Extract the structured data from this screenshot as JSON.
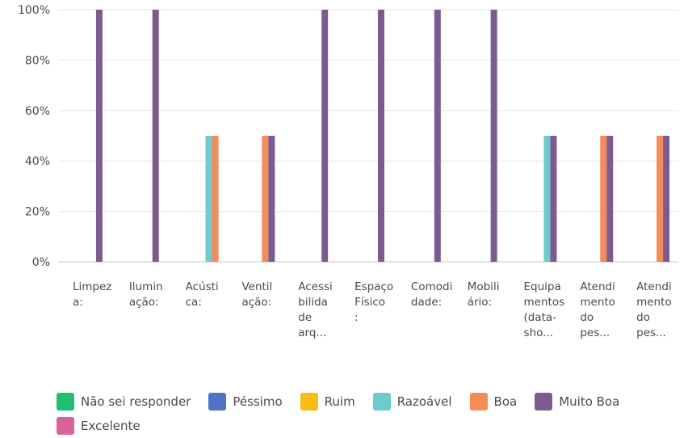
{
  "chart_data": {
    "type": "bar",
    "categories": [
      [
        "Limpez",
        "a:"
      ],
      [
        "Ilumin",
        "ação:"
      ],
      [
        "Acústi",
        "ca:"
      ],
      [
        "Ventil",
        "ação:"
      ],
      [
        "Acessi",
        "bilida",
        "de",
        "arq..."
      ],
      [
        "Espaço",
        "Físico",
        ":"
      ],
      [
        "Comodi",
        "dade:"
      ],
      [
        "Mobili",
        "ário:"
      ],
      [
        "Equipa",
        "mentos",
        "(data-",
        "sho..."
      ],
      [
        "Atendi",
        "mento",
        "do",
        "pes..."
      ],
      [
        "Atendi",
        "mento",
        "do",
        "pes..."
      ]
    ],
    "series": [
      {
        "name": "Não sei responder",
        "color": "#1fbf6f",
        "values": [
          0,
          0,
          0,
          0,
          0,
          0,
          0,
          0,
          0,
          0,
          0
        ]
      },
      {
        "name": "Péssimo",
        "color": "#4f73c4",
        "values": [
          0,
          0,
          0,
          0,
          0,
          0,
          0,
          0,
          0,
          0,
          0
        ]
      },
      {
        "name": "Ruim",
        "color": "#f6bd16",
        "values": [
          0,
          0,
          0,
          0,
          0,
          0,
          0,
          0,
          0,
          0,
          0
        ]
      },
      {
        "name": "Razoável",
        "color": "#6ecbcd",
        "values": [
          0,
          0,
          50,
          0,
          0,
          0,
          0,
          0,
          50,
          0,
          0
        ]
      },
      {
        "name": "Boa",
        "color": "#f58b57",
        "values": [
          0,
          0,
          50,
          50,
          0,
          0,
          0,
          0,
          0,
          50,
          50
        ]
      },
      {
        "name": "Muito Boa",
        "color": "#7b5c91",
        "values": [
          100,
          100,
          0,
          50,
          100,
          100,
          100,
          100,
          50,
          50,
          50
        ]
      },
      {
        "name": "Excelente",
        "color": "#d9639d",
        "values": [
          0,
          0,
          0,
          0,
          0,
          0,
          0,
          0,
          0,
          0,
          0
        ]
      }
    ],
    "yticks": [
      "0%",
      "20%",
      "40%",
      "60%",
      "80%",
      "100%"
    ],
    "ylim": [
      0,
      100
    ],
    "grid": true,
    "legend_position": "bottom"
  }
}
